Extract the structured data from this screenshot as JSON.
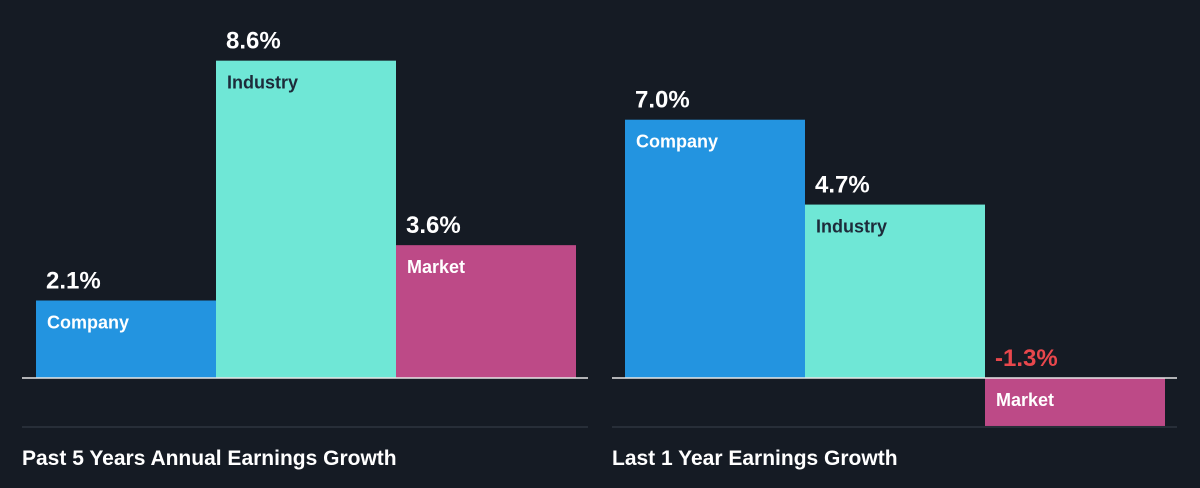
{
  "chart_data": [
    {
      "type": "bar",
      "title": "Past 5 Years Annual Earnings Growth",
      "categories": [
        "Company",
        "Industry",
        "Market"
      ],
      "values": [
        2.1,
        8.6,
        3.6
      ],
      "value_labels": [
        "2.1%",
        "8.6%",
        "3.6%"
      ],
      "unit": "%",
      "colors": [
        "#2394e0",
        "#6fe7d6",
        "#bd4a87"
      ]
    },
    {
      "type": "bar",
      "title": "Last 1 Year Earnings Growth",
      "categories": [
        "Company",
        "Industry",
        "Market"
      ],
      "values": [
        7.0,
        4.7,
        -1.3
      ],
      "value_labels": [
        "7.0%",
        "4.7%",
        "-1.3%"
      ],
      "unit": "%",
      "colors": [
        "#2394e0",
        "#6fe7d6",
        "#bd4a87"
      ]
    }
  ],
  "style": {
    "background": "#151b24",
    "value_color": "#ffffff",
    "negative_value_color": "#e8474c",
    "category_text_on_dark": "#ffffff",
    "category_text_on_light": "#1d2b3a",
    "axis_color": "#e6e6e6",
    "baseline_color": "#39414c"
  }
}
